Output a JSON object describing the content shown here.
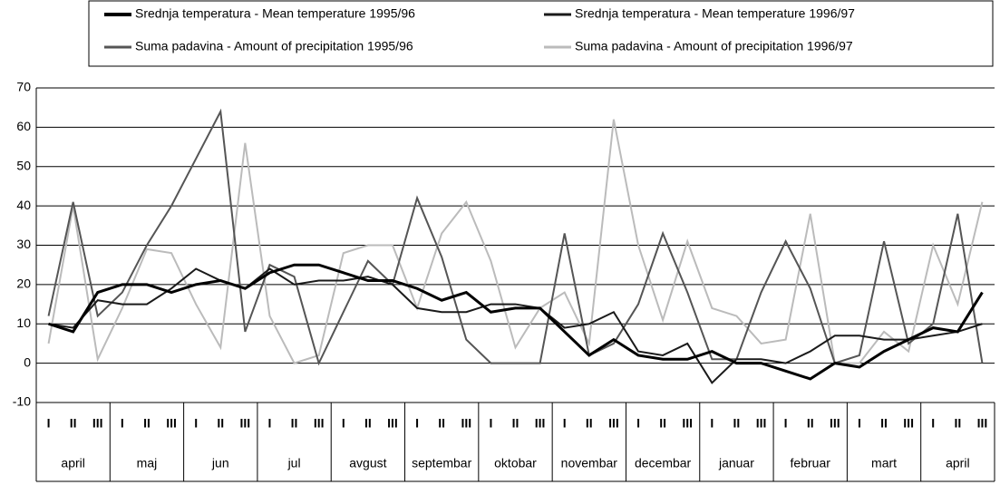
{
  "chart_data": {
    "type": "line",
    "months": [
      "april",
      "maj",
      "jun",
      "jul",
      "avgust",
      "septembar",
      "oktobar",
      "novembar",
      "decembar",
      "januar",
      "februar",
      "mart",
      "april"
    ],
    "categories": [
      "I",
      "II",
      "III",
      "I",
      "II",
      "III",
      "I",
      "II",
      "III",
      "I",
      "II",
      "III",
      "I",
      "II",
      "III",
      "I",
      "II",
      "III",
      "I",
      "II",
      "III",
      "I",
      "II",
      "III",
      "I",
      "II",
      "III",
      "I",
      "II",
      "III",
      "I",
      "II",
      "III",
      "I",
      "II",
      "III",
      "I",
      "II",
      "III"
    ],
    "series": [
      {
        "name": "Srednja temperatura - Mean temperature 1995/96",
        "color": "#000000",
        "width": 3,
        "values": [
          10,
          8,
          18,
          20,
          20,
          18,
          20,
          21,
          19,
          23,
          25,
          25,
          23,
          21,
          21,
          19,
          16,
          18,
          13,
          14,
          14,
          8,
          2,
          6,
          2,
          1,
          1,
          3,
          0,
          0,
          -2,
          -4,
          0,
          -1,
          3,
          6,
          9,
          8,
          18
        ]
      },
      {
        "name": "Srednja temperatura - Mean temperature 1996/97",
        "color": "#1a1a1a",
        "width": 2,
        "values": [
          10,
          9,
          16,
          15,
          15,
          19,
          24,
          21,
          19,
          24,
          20,
          21,
          21,
          22,
          20,
          14,
          13,
          13,
          15,
          15,
          14,
          9,
          10,
          13,
          3,
          2,
          5,
          -5,
          1,
          1,
          0,
          3,
          7,
          7,
          6,
          6,
          7,
          8,
          10
        ]
      },
      {
        "name": "Suma padavina - Amount of precipitation 1995/96",
        "color": "#555555",
        "width": 2,
        "values": [
          12,
          41,
          12,
          18,
          30,
          40,
          52,
          64,
          8,
          25,
          22,
          0,
          13,
          26,
          20,
          42,
          27,
          6,
          0,
          0,
          0,
          33,
          2,
          5,
          15,
          33,
          18,
          1,
          1,
          18,
          31,
          19,
          0,
          2,
          31,
          5,
          10,
          38,
          0
        ]
      },
      {
        "name": "Suma padavina - Amount of precipitation 1996/97",
        "color": "#bbbbbb",
        "width": 2,
        "values": [
          5,
          40,
          1,
          14,
          29,
          28,
          15,
          4,
          56,
          12,
          0,
          2,
          28,
          30,
          30,
          14,
          33,
          41,
          26,
          4,
          14,
          18,
          5,
          62,
          30,
          11,
          31,
          14,
          12,
          5,
          6,
          38,
          0,
          0,
          8,
          3,
          30,
          15,
          41
        ]
      }
    ],
    "ylim": [
      -10,
      70
    ],
    "yticks": [
      -10,
      0,
      10,
      20,
      30,
      40,
      50,
      60,
      70
    ],
    "grid": true
  }
}
